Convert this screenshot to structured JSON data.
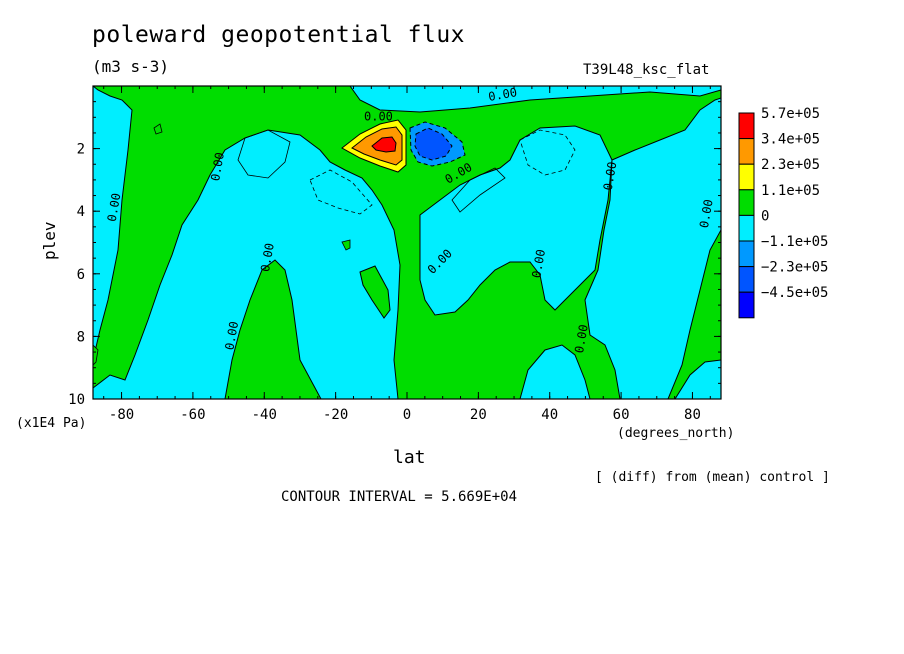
{
  "chart_data": {
    "type": "heatmap",
    "title": "poleward geopotential flux",
    "units": "(m3 s-3)",
    "run": "T39L48_ksc_flat",
    "xlabel": "lat",
    "x_units": "(degrees_north)",
    "ylabel": "plev",
    "y_units": "(x1E4 Pa)",
    "xlim": [
      -88,
      88
    ],
    "ylim": [
      0,
      10
    ],
    "y_inverted": true,
    "x_ticks": [
      "-80",
      "-60",
      "-40",
      "-20",
      "0",
      "20",
      "40",
      "60",
      "80"
    ],
    "y_ticks": [
      "2",
      "4",
      "6",
      "8",
      "10"
    ],
    "contour_label": "0.00",
    "footnote": "[ (diff) from (mean) control ]",
    "contour_interval": "CONTOUR INTERVAL = 5.669E+04",
    "legend": {
      "levels": [
        "5.7e+05",
        "3.4e+05",
        "2.3e+05",
        "1.1e+05",
        "0",
        "−1.1e+05",
        "−2.3e+05",
        "−4.5e+05"
      ],
      "colors": [
        "#ff0000",
        "#ff9900",
        "#ffff00",
        "#00dd00",
        "#00eeff",
        "#0099ff",
        "#0055ff",
        "#0000ff"
      ]
    },
    "features": [
      {
        "lat": -6,
        "plev": 2.0,
        "sign": "positive",
        "peak": "5.7e+05"
      },
      {
        "lat": 7,
        "plev": 2.0,
        "sign": "negative",
        "peak": "-4.5e+05"
      }
    ]
  }
}
